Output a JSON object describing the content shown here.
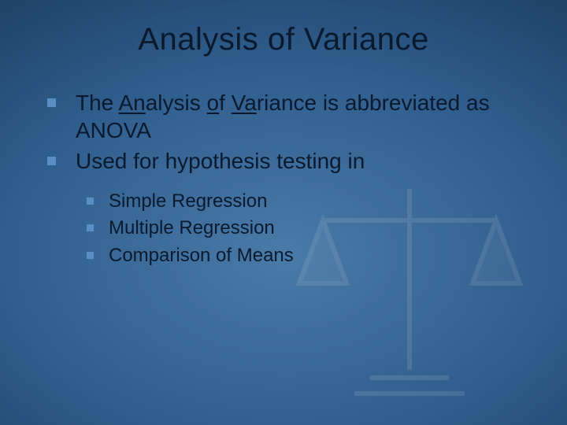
{
  "title": "Analysis of Variance",
  "bullets": [
    {
      "segments": [
        {
          "text": "The ",
          "u": false
        },
        {
          "text": "An",
          "u": true
        },
        {
          "text": "alysis ",
          "u": false
        },
        {
          "text": "o",
          "u": true
        },
        {
          "text": "f ",
          "u": false
        },
        {
          "text": "Va",
          "u": true
        },
        {
          "text": "riance is abbreviated as ANOVA",
          "u": false
        }
      ]
    },
    {
      "segments": [
        {
          "text": "Used for hypothesis testing in",
          "u": false
        }
      ]
    }
  ],
  "sub_bullets": [
    "Simple Regression",
    "Multiple Regression",
    "Comparison of Means"
  ],
  "style": {
    "background_gradient_inner": "#4a7aa8",
    "background_gradient_outer": "#0d2139",
    "bullet_square_color": "#5a8fc5",
    "text_color": "#0a1a2e",
    "title_fontsize": 40,
    "body_fontsize": 28,
    "sub_fontsize": 24,
    "font_family": "Arial"
  }
}
